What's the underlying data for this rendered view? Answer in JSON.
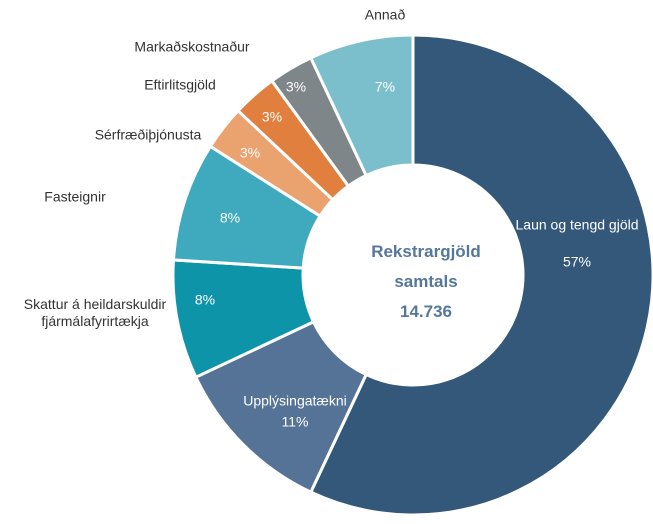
{
  "chart_data": {
    "type": "donut",
    "center_lines": [
      "Rekstrargjöld",
      "samtals",
      "14.736"
    ],
    "categories": [
      "Laun og tengd gjöld",
      "Upplýsingatækni",
      "Skattur á heildarskuldir fjármálafyrirtækja",
      "Fasteignir",
      "Sérfræðiþjónusta",
      "Eftirlitsgjöld",
      "Markaðskostnaður",
      "Annað"
    ],
    "values": [
      57,
      11,
      8,
      8,
      3,
      3,
      3,
      7
    ],
    "value_labels": [
      "57%",
      "11%",
      "8%",
      "8%",
      "3%",
      "3%",
      "3%",
      "7%"
    ],
    "colors": [
      "#34587a",
      "#557396",
      "#0e94a8",
      "#3faabd",
      "#eaa26f",
      "#e07f3e",
      "#7f8689",
      "#7bbfcc"
    ]
  }
}
